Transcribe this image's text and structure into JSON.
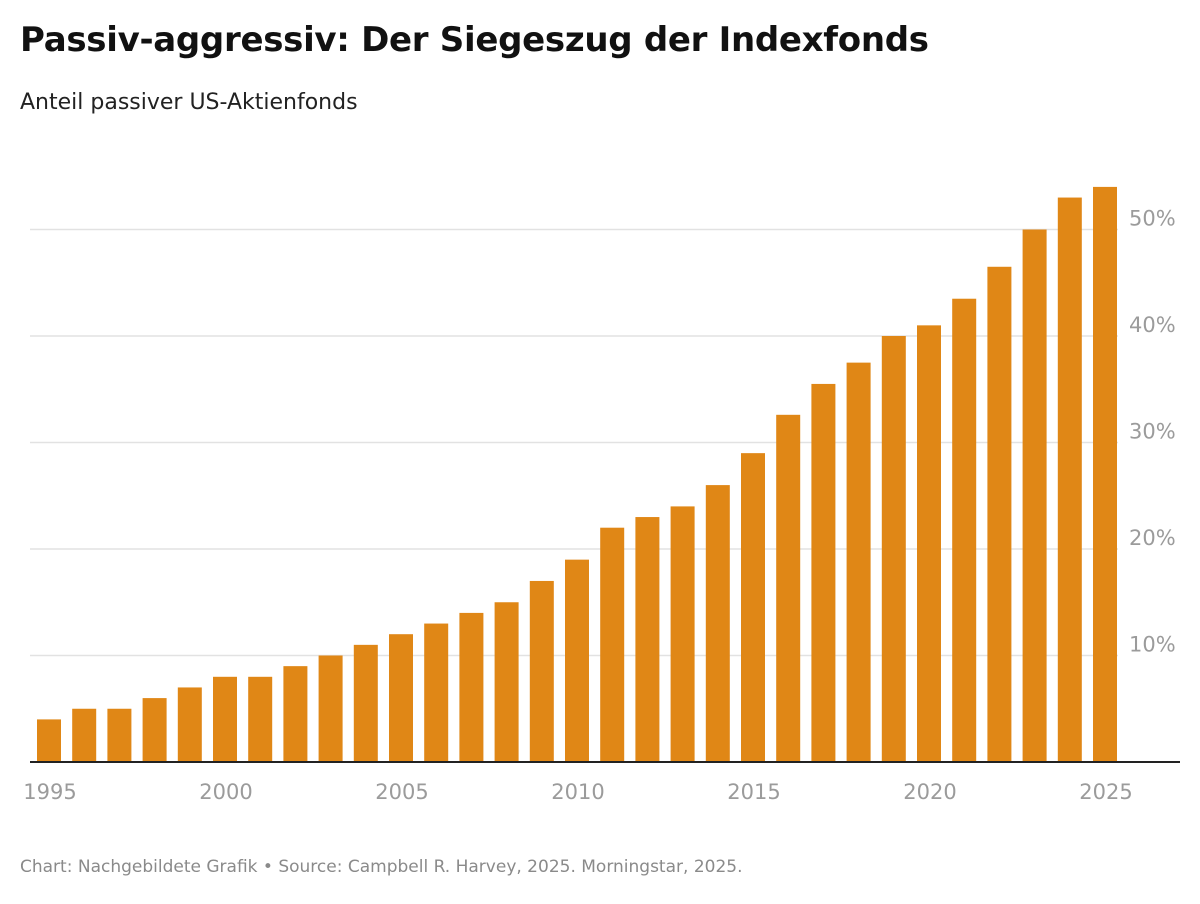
{
  "header": {
    "title": "Passiv-aggressiv: Der Siegeszug der Indexfonds",
    "subtitle": "Anteil passiver US-Aktienfonds"
  },
  "footer": {
    "note": "Chart: Nachgebildete Grafik • Source: Campbell R. Harvey, 2025. Morningstar, 2025."
  },
  "colors": {
    "bar": "#e08716",
    "grid": "#e2e2e2",
    "axis": "#222222",
    "tick": "#9b9b9b"
  },
  "chart_data": {
    "type": "bar",
    "title": "Passiv-aggressiv: Der Siegeszug der Indexfonds",
    "subtitle": "Anteil passiver US-Aktienfonds",
    "xlabel": "",
    "ylabel": "",
    "categories": [
      1995,
      1996,
      1997,
      1998,
      1999,
      2000,
      2001,
      2002,
      2003,
      2004,
      2005,
      2006,
      2007,
      2008,
      2009,
      2010,
      2011,
      2012,
      2013,
      2014,
      2015,
      2016,
      2017,
      2018,
      2019,
      2020,
      2021,
      2022,
      2023,
      2024,
      2025
    ],
    "values": [
      4,
      5,
      5,
      6,
      7,
      8,
      8,
      9,
      10,
      11,
      12,
      13,
      14,
      15,
      17,
      19,
      22,
      23,
      24,
      26,
      29,
      32.6,
      35.5,
      37.5,
      40,
      41,
      43.5,
      46.5,
      50,
      53,
      54
    ],
    "ylim": [
      0,
      55
    ],
    "y_ticks": [
      10,
      20,
      30,
      40,
      50
    ],
    "y_tick_labels": [
      "10%",
      "20%",
      "30%",
      "40%",
      "50%"
    ],
    "y_axis_side": "right",
    "x_tick_labels": [
      "1995",
      "2000",
      "2005",
      "2010",
      "2015",
      "2020",
      "2025"
    ],
    "grid": true,
    "legend": "none"
  }
}
